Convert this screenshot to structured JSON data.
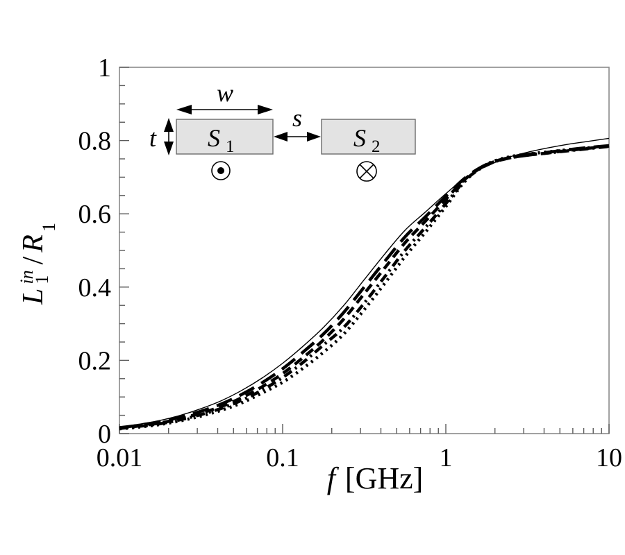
{
  "figure": {
    "background": "#ffffff",
    "frame_color": "#8a8a8a",
    "curve_color": "#000000",
    "x_tick_labels": [
      "0.01",
      "0.1",
      "1",
      "10"
    ],
    "y_tick_labels": [
      "0",
      "0.2",
      "0.4",
      "0.6",
      "0.8",
      "1"
    ],
    "xlabel_var": "f",
    "xlabel_unit": "[GHz]",
    "ylabel": {
      "numerator_var": "L",
      "numerator_sup": "in",
      "numerator_sub": "1",
      "slash": "/",
      "denominator_var": "R",
      "denominator_sub": "1"
    }
  },
  "inset": {
    "w_label": "w",
    "s_label": "s",
    "t_label": "t",
    "s1": {
      "base": "S",
      "sub": "1"
    },
    "s2": {
      "base": "S",
      "sub": "2"
    },
    "bar_fill": "#e3e3e3",
    "current_out_symbol": "circle-dot",
    "current_in_symbol": "circle-cross"
  },
  "chart_data": {
    "type": "line",
    "title": "",
    "xlabel": "f [GHz]",
    "ylabel": "L1^in / R1",
    "x_axis": {
      "scale": "log",
      "range": [
        0.01,
        10
      ],
      "ticks": [
        0.01,
        0.1,
        1,
        10
      ]
    },
    "y_axis": {
      "scale": "linear",
      "range": [
        0,
        1
      ],
      "ticks": [
        0,
        0.2,
        0.4,
        0.6,
        0.8,
        1
      ],
      "minor_step": 0.05
    },
    "grid": false,
    "legend": "none",
    "x": [
      0.01,
      0.0133,
      0.0178,
      0.0237,
      0.0316,
      0.0422,
      0.0562,
      0.075,
      0.1,
      0.133,
      0.178,
      0.237,
      0.316,
      0.422,
      0.562,
      0.75,
      1.0,
      1.33,
      1.78,
      2.37,
      3.16,
      4.22,
      5.62,
      7.5,
      10.0
    ],
    "series": [
      {
        "name": "solid",
        "style": "solid",
        "values": [
          0.018,
          0.026,
          0.036,
          0.05,
          0.068,
          0.09,
          0.118,
          0.152,
          0.192,
          0.238,
          0.29,
          0.35,
          0.42,
          0.49,
          0.555,
          0.605,
          0.655,
          0.7,
          0.73,
          0.753,
          0.768,
          0.78,
          0.79,
          0.798,
          0.806
        ]
      },
      {
        "name": "long-dash",
        "style": "long-dash",
        "values": [
          0.016,
          0.023,
          0.032,
          0.045,
          0.061,
          0.081,
          0.107,
          0.139,
          0.177,
          0.222,
          0.272,
          0.331,
          0.4,
          0.47,
          0.537,
          0.592,
          0.648,
          0.7,
          0.735,
          0.752,
          0.762,
          0.768,
          0.775,
          0.781,
          0.786
        ]
      },
      {
        "name": "short-dash",
        "style": "short-dash",
        "values": [
          0.015,
          0.021,
          0.029,
          0.041,
          0.056,
          0.074,
          0.098,
          0.128,
          0.164,
          0.207,
          0.256,
          0.313,
          0.382,
          0.452,
          0.521,
          0.58,
          0.64,
          0.697,
          0.734,
          0.751,
          0.76,
          0.766,
          0.773,
          0.779,
          0.785
        ]
      },
      {
        "name": "dash-dot",
        "style": "dash-dot",
        "values": [
          0.014,
          0.02,
          0.027,
          0.038,
          0.052,
          0.069,
          0.091,
          0.119,
          0.153,
          0.194,
          0.242,
          0.29,
          0.356,
          0.428,
          0.5,
          0.563,
          0.628,
          0.694,
          0.733,
          0.751,
          0.76,
          0.766,
          0.772,
          0.778,
          0.784
        ]
      },
      {
        "name": "dotted",
        "style": "dotted",
        "values": [
          0.013,
          0.018,
          0.025,
          0.035,
          0.048,
          0.064,
          0.084,
          0.111,
          0.14,
          0.178,
          0.222,
          0.272,
          0.338,
          0.41,
          0.483,
          0.55,
          0.62,
          0.692,
          0.735,
          0.754,
          0.763,
          0.769,
          0.775,
          0.78,
          0.785
        ]
      }
    ]
  }
}
